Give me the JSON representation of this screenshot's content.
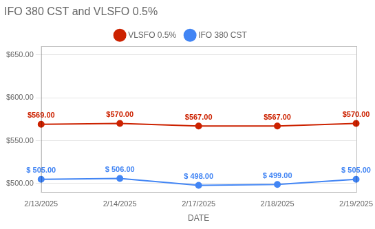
{
  "chart_data": {
    "type": "line",
    "title": "IFO 380 CST and VLSFO 0.5%",
    "xlabel": "DATE",
    "categories": [
      "2/13/2025",
      "2/14/2025",
      "2/17/2025",
      "2/18/2025",
      "2/19/2025"
    ],
    "series": [
      {
        "name": "VLSFO 0.5%",
        "color": "#CC2200",
        "marker": "circle",
        "values": [
          569,
          570,
          567,
          567,
          570
        ],
        "value_labels": [
          "$569.00",
          "$570.00",
          "$567.00",
          "$567.00",
          "$570.00"
        ]
      },
      {
        "name": "IFO 380 CST",
        "color": "#4285F4",
        "marker": "circle",
        "values": [
          505,
          506,
          498,
          499,
          505
        ],
        "value_labels": [
          "$ 505.00",
          "$ 506.00",
          "$ 498.00",
          "$ 499.00",
          "$ 505.00"
        ]
      }
    ],
    "ylim": [
      490,
      660
    ],
    "yticks": [
      {
        "value": 500,
        "label": "$500.00"
      },
      {
        "value": 550,
        "label": "$550.00"
      },
      {
        "value": 600,
        "label": "$600.00"
      },
      {
        "value": 650,
        "label": "$650.00"
      }
    ],
    "grid": true,
    "legend": "top",
    "data_labels": true
  }
}
